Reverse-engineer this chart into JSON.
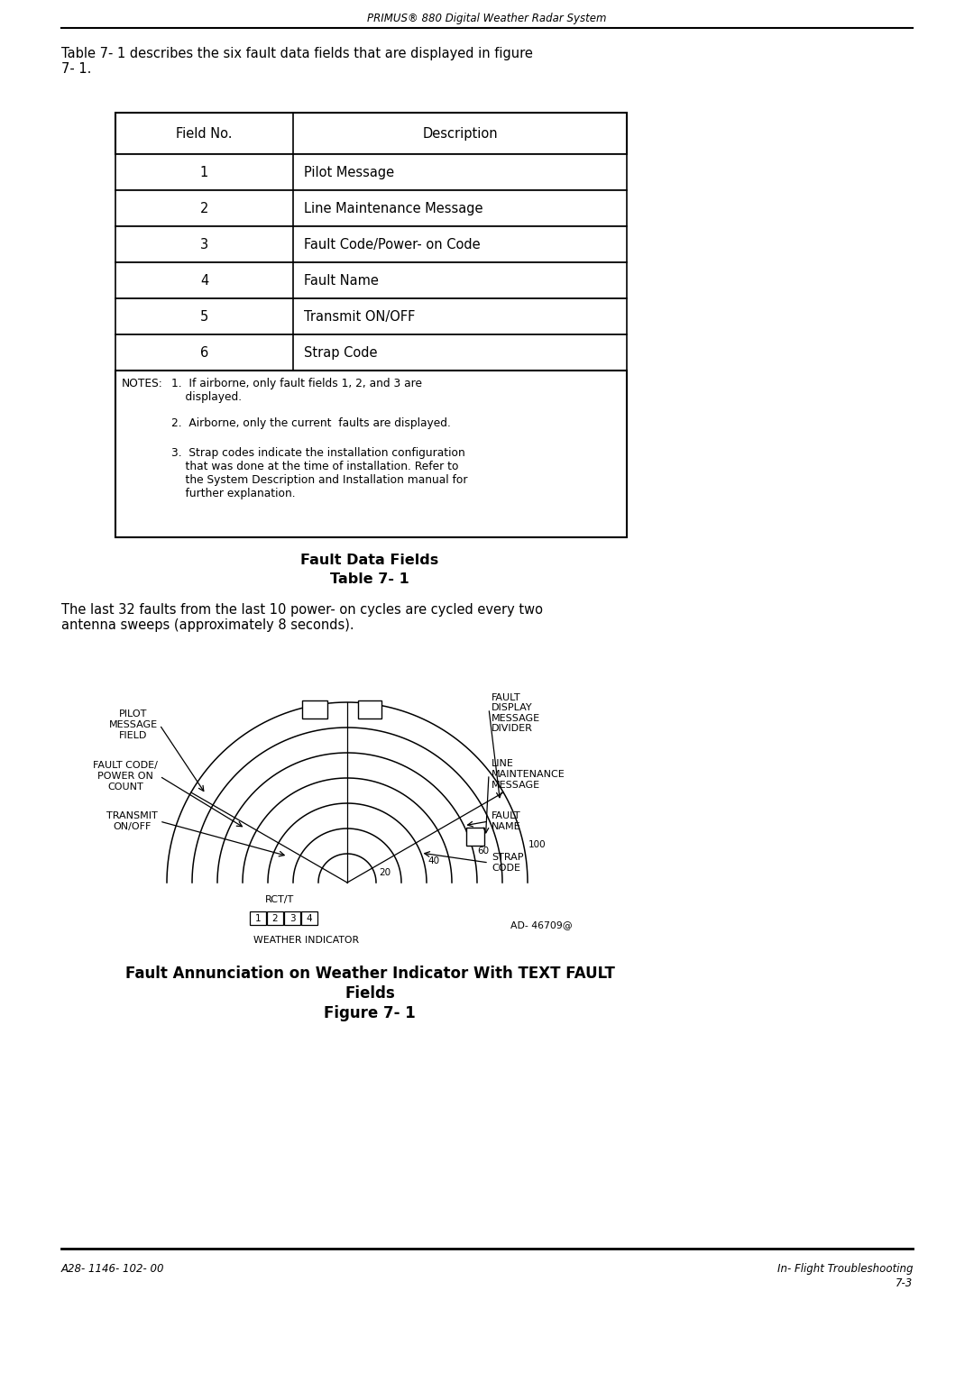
{
  "bg_color": "#ffffff",
  "header_text": "PRIMUS® 880 Digital Weather Radar System",
  "intro_text": "Table 7- 1 describes the six fault data fields that are displayed in figure\n7- 1.",
  "table_header": [
    "Field No.",
    "Description"
  ],
  "table_rows": [
    [
      "1",
      "Pilot Message"
    ],
    [
      "2",
      "Line Maintenance Message"
    ],
    [
      "3",
      "Fault Code/Power- on Code"
    ],
    [
      "4",
      "Fault Name"
    ],
    [
      "5",
      "Transmit ON/OFF"
    ],
    [
      "6",
      "Strap Code"
    ]
  ],
  "notes_label": "NOTES:",
  "notes": [
    "1.  If airborne, only fault fields 1, 2, and 3 are\n    displayed.",
    "2.  Airborne, only the current  faults are displayed.",
    "3.  Strap codes indicate the installation configuration\n    that was done at the time of installation. Refer to\n    the System Description and Installation manual for\n    further explanation."
  ],
  "table_caption_line1": "Fault Data Fields",
  "table_caption_line2": "Table 7- 1",
  "body_text": "The last 32 faults from the last 10 power- on cycles are cycled every two\nantenna sweeps (approximately 8 seconds).",
  "fig_caption_line1": "Fault Annunciation on Weather Indicator With TEXT FAULT",
  "fig_caption_line2": "Fields",
  "fig_caption_line3": "Figure 7- 1",
  "footer_left": "A28- 1146- 102- 00",
  "footer_right_line1": "In- Flight Troubleshooting",
  "footer_right_line2": "7-3",
  "left_labels": [
    "PILOT\nMESSAGE\nFIELD",
    "FAULT CODE/\nPOWER ON\nCOUNT",
    "TRANSMIT\nON/OFF"
  ],
  "right_labels": [
    "FAULT\nDISPLAY\nMESSAGE\nDIVIDER",
    "LINE\nMAINTENANCE\nMESSAGE",
    "FAULT\nNAME",
    "STRAP\nCODE"
  ],
  "range_labels": [
    "100",
    "60",
    "40",
    "20"
  ],
  "bottom_labels_left": "RCT/T",
  "bottom_label_center": "WEATHER INDICATOR",
  "bottom_label_right": "AD- 46709@",
  "mode_boxes": [
    "1",
    "2",
    "3",
    "4"
  ]
}
